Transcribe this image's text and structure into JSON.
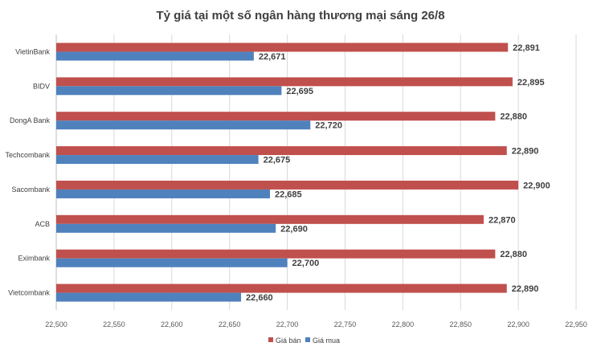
{
  "chart_data": {
    "type": "bar",
    "orientation": "horizontal",
    "title": "Tỷ giá tại một số ngân hàng thương mại sáng 26/8",
    "xlabel": "",
    "ylabel": "",
    "categories": [
      "VietinBank",
      "BIDV",
      "DongA Bank",
      "Techcombank",
      "Sacombank",
      "ACB",
      "Eximbank",
      "Vietcombank"
    ],
    "series": [
      {
        "name": "Giá bán",
        "color": "#c0504d",
        "values": [
          22891,
          22895,
          22880,
          22890,
          22900,
          22870,
          22880,
          22890
        ]
      },
      {
        "name": "Giá mua",
        "color": "#4f81bd",
        "values": [
          22671,
          22695,
          22720,
          22675,
          22685,
          22690,
          22700,
          22660
        ]
      }
    ],
    "data_labels": [
      [
        "22,891",
        "22,895",
        "22,880",
        "22,890",
        "22,900",
        "22,870",
        "22,880",
        "22,890"
      ],
      [
        "22,671",
        "22,695",
        "22,720",
        "22,675",
        "22,685",
        "22,690",
        "22,700",
        "22,660"
      ]
    ],
    "xlim": [
      22500,
      22950
    ],
    "xticks": [
      22500,
      22550,
      22600,
      22650,
      22700,
      22750,
      22800,
      22850,
      22900,
      22950
    ],
    "xtick_labels": [
      "22,500",
      "22,550",
      "22,600",
      "22,650",
      "22,700",
      "22,750",
      "22,800",
      "22,850",
      "22,900",
      "22,950"
    ],
    "grid": true,
    "legend_position": "bottom-center"
  }
}
